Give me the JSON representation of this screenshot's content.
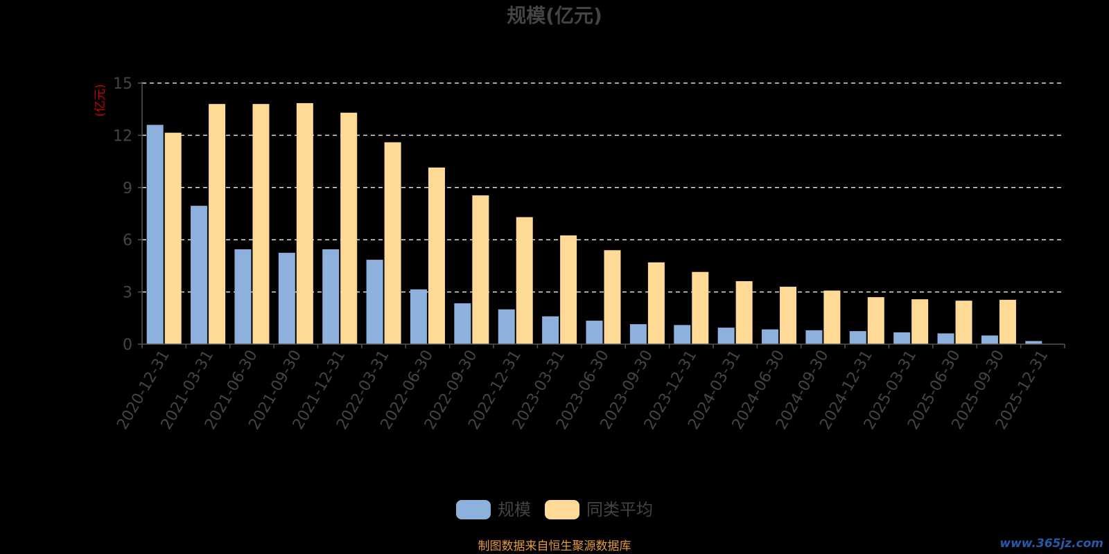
{
  "chart_data": {
    "type": "bar",
    "title": "规模(亿元)",
    "unit_label": "(亿元)",
    "categories": [
      "2020-12-31",
      "2021-03-31",
      "2021-06-30",
      "2021-09-30",
      "2021-12-31",
      "2022-03-31",
      "2022-06-30",
      "2022-09-30",
      "2022-12-31",
      "2023-03-31",
      "2023-06-30",
      "2023-09-30",
      "2023-12-31",
      "2024-03-31",
      "2024-06-30",
      "2024-09-30",
      "2024-12-31",
      "2025-03-31",
      "2025-06-30",
      "2025-09-30",
      "2025-12-31"
    ],
    "series": [
      {
        "name": "规模",
        "color": "#8eb0dc",
        "values": [
          12.6,
          7.95,
          5.45,
          5.25,
          5.45,
          4.85,
          3.15,
          2.35,
          2.0,
          1.6,
          1.35,
          1.15,
          1.1,
          0.95,
          0.85,
          0.8,
          0.75,
          0.68,
          0.62,
          0.5,
          0.18
        ]
      },
      {
        "name": "同类平均",
        "color": "#ffd996",
        "values": [
          12.15,
          13.8,
          13.8,
          13.85,
          13.3,
          11.6,
          10.15,
          8.55,
          7.3,
          6.25,
          5.4,
          4.7,
          4.15,
          3.62,
          3.3,
          3.08,
          2.7,
          2.58,
          2.5,
          2.55,
          null
        ]
      }
    ],
    "ylim": [
      0,
      15
    ],
    "yticks": [
      0,
      3,
      6,
      9,
      12,
      15
    ],
    "grid": true,
    "legend_position": "bottom",
    "colors": {
      "background": "#000000",
      "title": "#444444",
      "axis_text": "#444444",
      "axis_line": "#555555",
      "grid": "#dddddd",
      "unit_label": "#cc0000",
      "source_note": "#e39a3a",
      "watermark": "#2a58a8"
    }
  },
  "footer": {
    "source_note": "制图数据来自恒生聚源数据库",
    "watermark": "www.365jz.com"
  }
}
